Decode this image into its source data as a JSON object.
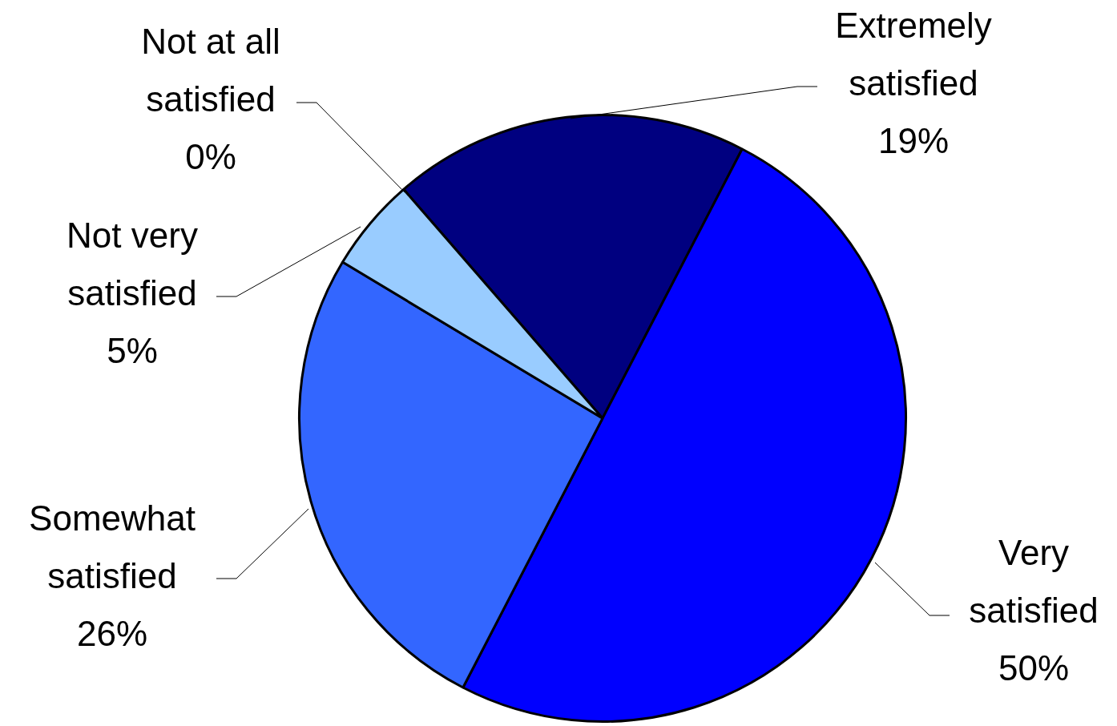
{
  "chart_data": {
    "type": "pie",
    "categories": [
      "Extremely satisfied",
      "Very satisfied",
      "Somewhat satisfied",
      "Not very satisfied",
      "Not at all satisfied"
    ],
    "values": [
      19,
      50,
      26,
      5,
      0
    ],
    "value_labels": [
      "19%",
      "50%",
      "26%",
      "5%",
      "0%"
    ],
    "colors": [
      "#000080",
      "#0000ff",
      "#3366ff",
      "#99ccff",
      "#800000"
    ],
    "legend": false
  }
}
